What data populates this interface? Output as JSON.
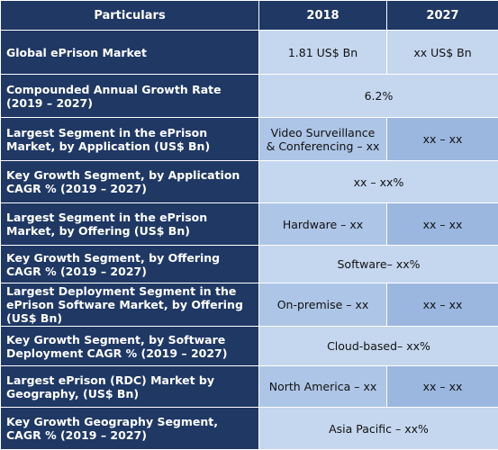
{
  "header": {
    "particulars": "Particulars",
    "col_2018": "2018",
    "col_2027": "2027"
  },
  "rows": [
    {
      "label": "Global ePrison Market",
      "v2018": "1.81 US$ Bn",
      "v2027": "xx US$ Bn"
    },
    {
      "label": "Compounded Annual Growth Rate (2019 – 2027)",
      "merged": "6.2%"
    },
    {
      "label": "Largest Segment in the ePrison Market, by Application (US$ Bn)",
      "v2018": "Video Surveillance & Conferencing – xx",
      "v2027": "xx – xx"
    },
    {
      "label": "Key Growth Segment, by Application CAGR % (2019 – 2027)",
      "merged": "xx – xx%"
    },
    {
      "label": "Largest Segment in the ePrison Market, by Offering (US$ Bn)",
      "v2018": "Hardware – xx",
      "v2027": "xx – xx"
    },
    {
      "label": "Key Growth Segment, by Offering CAGR % (2019 – 2027)",
      "merged": "Software– xx%"
    },
    {
      "label": "Largest Deployment Segment in the ePrison Software Market, by Offering (US$ Bn)",
      "v2018": "On-premise – xx",
      "v2027": "xx – xx"
    },
    {
      "label": "Key Growth Segment, by Software Deployment CAGR % (2019 – 2027)",
      "merged": "Cloud-based– xx%"
    },
    {
      "label": "Largest ePrison (RDC) Market by Geography, (US$ Bn)",
      "v2018": "North America – xx",
      "v2027": "xx – xx"
    },
    {
      "label": "Key Growth Geography Segment, CAGR % (2019 – 2027)",
      "merged": "Asia Pacific – xx%"
    }
  ]
}
